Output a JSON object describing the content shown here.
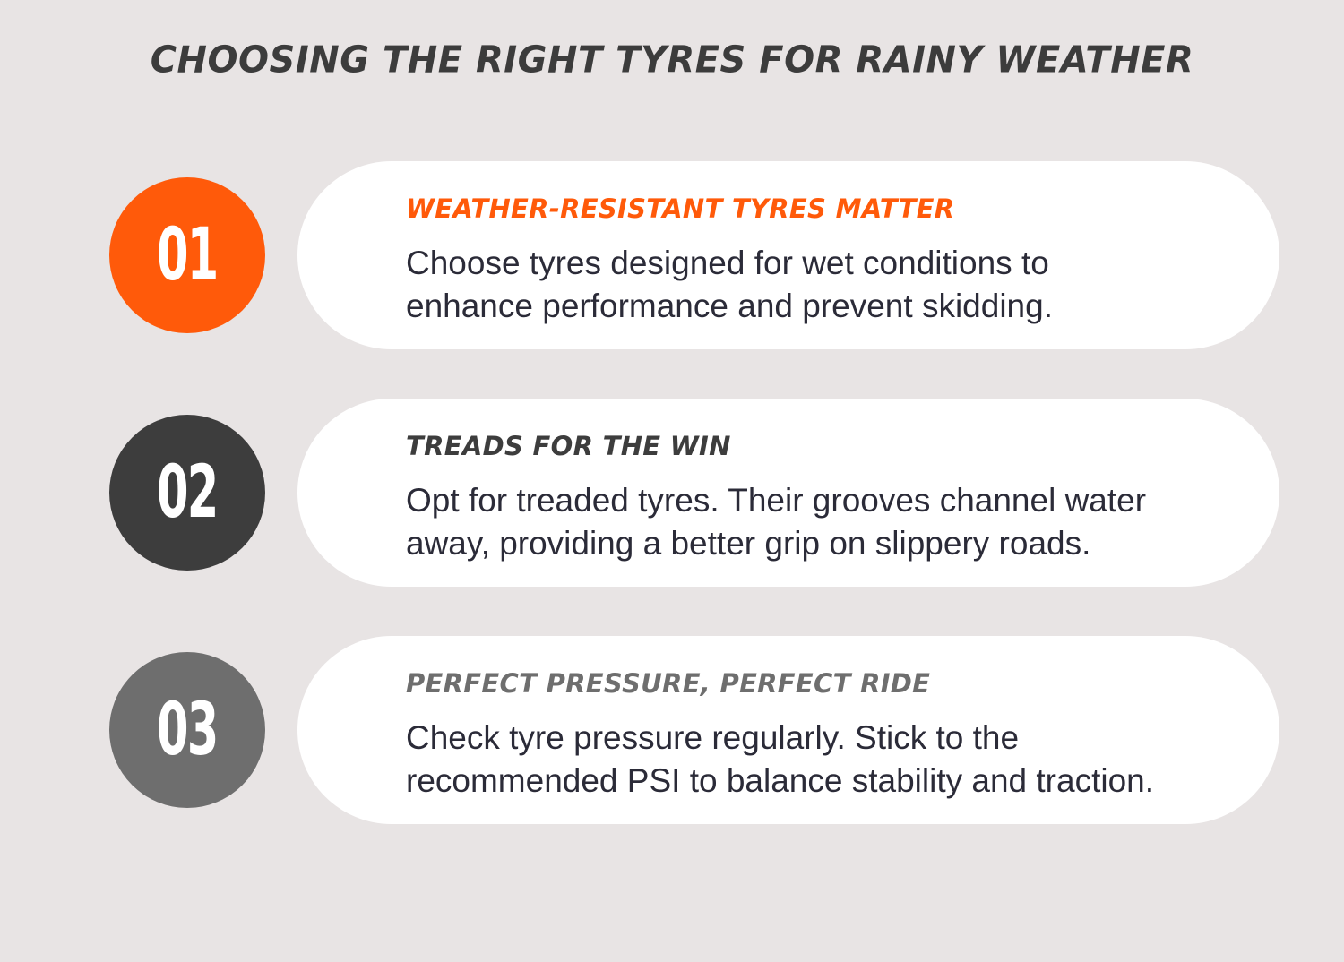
{
  "title": "CHOOSING THE RIGHT TYRES FOR RAINY WEATHER",
  "colors": {
    "background": "#e8e4e4",
    "accent_orange": "#ff5a0a",
    "dark_gray": "#3d3d3d",
    "mid_gray": "#6e6e6e",
    "card": "#ffffff",
    "body_text": "#2b2b38"
  },
  "tips": [
    {
      "number": "01",
      "heading": "WEATHER-RESISTANT TYRES MATTER",
      "line1": "Choose tyres designed for wet conditions to",
      "line2": "enhance performance and prevent skidding.",
      "badge_color": "#ff5a0a",
      "heading_color": "#ff5a0a"
    },
    {
      "number": "02",
      "heading": "TREADS FOR THE WIN",
      "line1": "Opt for treaded tyres. Their grooves channel water",
      "line2": "away, providing a better grip on slippery roads.",
      "badge_color": "#3d3d3d",
      "heading_color": "#3d3d3d"
    },
    {
      "number": "03",
      "heading": "PERFECT PRESSURE, PERFECT RIDE",
      "line1": "Check tyre pressure regularly. Stick to the",
      "line2": "recommended PSI to balance stability and traction.",
      "badge_color": "#6e6e6e",
      "heading_color": "#6e6e6e"
    }
  ]
}
